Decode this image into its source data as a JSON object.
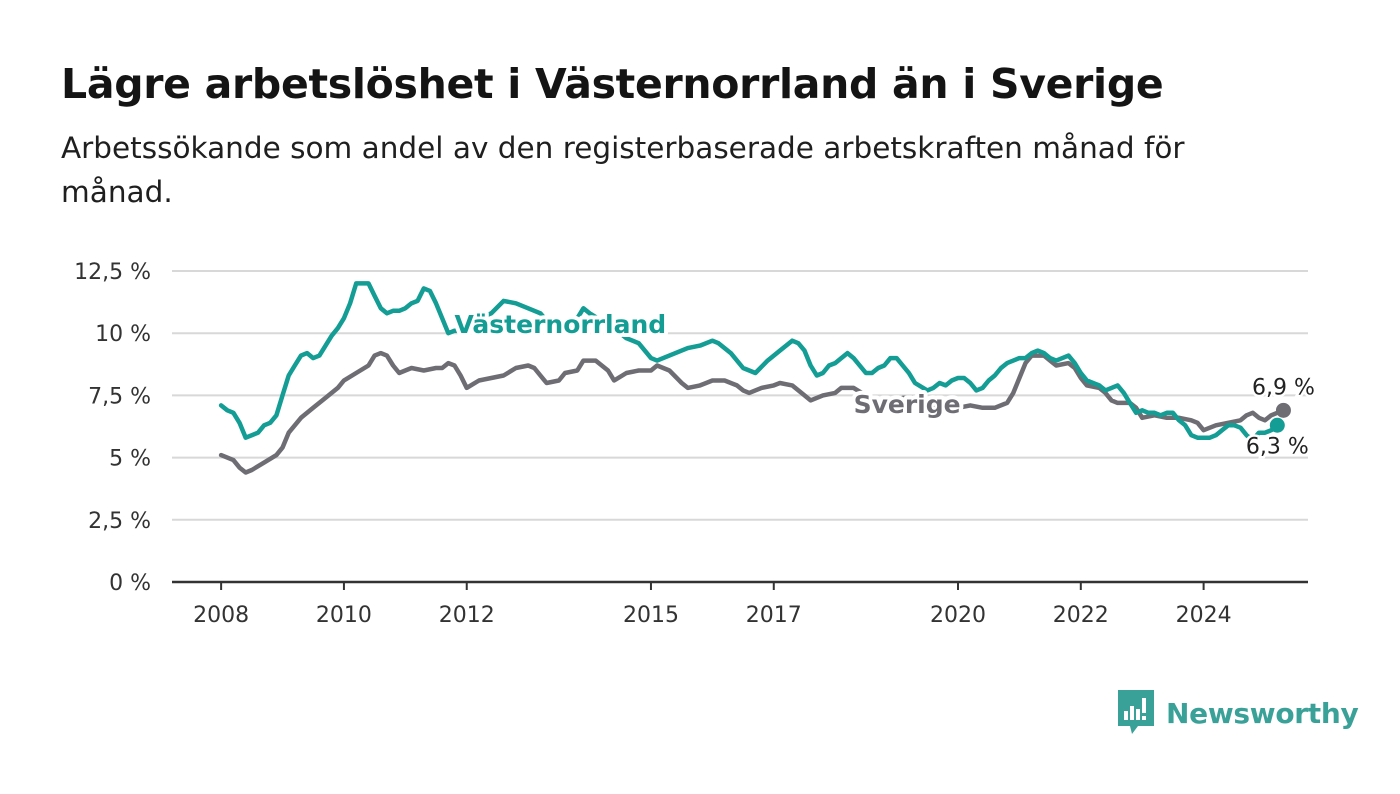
{
  "header": {
    "title": "Lägre arbetslöshet i Västernorrland än i Sverige",
    "subtitle": "Arbetssökande som andel av den registerbaserade arbetskraften månad för månad."
  },
  "brand": {
    "name": "Newsworthy",
    "icon": "newsworthy-logo-icon",
    "color": "#3aa198"
  },
  "chart_data": {
    "type": "line",
    "title": "Lägre arbetslöshet i Västernorrland än i Sverige",
    "subtitle": "Arbetssökande som andel av den registerbaserade arbetskraften månad för månad.",
    "xlabel": "",
    "ylabel": "",
    "xlim": [
      2007.2,
      2025.7
    ],
    "ylim": [
      0,
      12.5
    ],
    "y_ticks": [
      0,
      2.5,
      5,
      7.5,
      10,
      12.5
    ],
    "y_tick_labels": [
      "0 %",
      "2,5 %",
      "5 %",
      "7,5 %",
      "10 %",
      "12,5 %"
    ],
    "x_ticks": [
      2008,
      2010,
      2012,
      2015,
      2017,
      2020,
      2022,
      2024
    ],
    "x_tick_labels": [
      "2008",
      "2010",
      "2012",
      "2015",
      "2017",
      "2020",
      "2022",
      "2024"
    ],
    "grid": "horizontal",
    "legend": "inline labels",
    "series": [
      {
        "name": "Västernorrland",
        "color": "#139d94",
        "end_label": "6,3 %",
        "points": [
          [
            2008.0,
            7.1
          ],
          [
            2008.1,
            6.9
          ],
          [
            2008.2,
            6.8
          ],
          [
            2008.3,
            6.4
          ],
          [
            2008.4,
            5.8
          ],
          [
            2008.6,
            6.0
          ],
          [
            2008.7,
            6.3
          ],
          [
            2008.8,
            6.4
          ],
          [
            2008.9,
            6.7
          ],
          [
            2009.0,
            7.5
          ],
          [
            2009.1,
            8.3
          ],
          [
            2009.2,
            8.7
          ],
          [
            2009.3,
            9.1
          ],
          [
            2009.4,
            9.2
          ],
          [
            2009.5,
            9.0
          ],
          [
            2009.6,
            9.1
          ],
          [
            2009.8,
            9.9
          ],
          [
            2009.9,
            10.2
          ],
          [
            2010.0,
            10.6
          ],
          [
            2010.1,
            11.2
          ],
          [
            2010.2,
            12.0
          ],
          [
            2010.4,
            12.0
          ],
          [
            2010.5,
            11.5
          ],
          [
            2010.6,
            11.0
          ],
          [
            2010.7,
            10.8
          ],
          [
            2010.8,
            10.9
          ],
          [
            2010.9,
            10.9
          ],
          [
            2011.0,
            11.0
          ],
          [
            2011.1,
            11.2
          ],
          [
            2011.2,
            11.3
          ],
          [
            2011.3,
            11.8
          ],
          [
            2011.4,
            11.7
          ],
          [
            2011.5,
            11.2
          ],
          [
            2011.6,
            10.6
          ],
          [
            2011.7,
            10.0
          ],
          [
            2011.8,
            10.1
          ],
          [
            2011.9,
            10.1
          ],
          [
            2012.0,
            10.4
          ],
          [
            2012.2,
            10.6
          ],
          [
            2012.4,
            10.8
          ],
          [
            2012.6,
            11.3
          ],
          [
            2012.8,
            11.2
          ],
          [
            2013.0,
            11.0
          ],
          [
            2013.2,
            10.8
          ],
          [
            2013.4,
            10.2
          ],
          [
            2013.6,
            10.1
          ],
          [
            2013.8,
            10.6
          ],
          [
            2013.9,
            11.0
          ],
          [
            2014.0,
            10.8
          ],
          [
            2014.2,
            10.5
          ],
          [
            2014.4,
            10.2
          ],
          [
            2014.6,
            9.8
          ],
          [
            2014.8,
            9.6
          ],
          [
            2015.0,
            9.0
          ],
          [
            2015.1,
            8.9
          ],
          [
            2015.2,
            9.0
          ],
          [
            2015.4,
            9.2
          ],
          [
            2015.6,
            9.4
          ],
          [
            2015.8,
            9.5
          ],
          [
            2016.0,
            9.7
          ],
          [
            2016.1,
            9.6
          ],
          [
            2016.3,
            9.2
          ],
          [
            2016.5,
            8.6
          ],
          [
            2016.7,
            8.4
          ],
          [
            2016.9,
            8.9
          ],
          [
            2017.1,
            9.3
          ],
          [
            2017.3,
            9.7
          ],
          [
            2017.4,
            9.6
          ],
          [
            2017.5,
            9.3
          ],
          [
            2017.6,
            8.7
          ],
          [
            2017.7,
            8.3
          ],
          [
            2017.8,
            8.4
          ],
          [
            2017.9,
            8.7
          ],
          [
            2018.0,
            8.8
          ],
          [
            2018.1,
            9.0
          ],
          [
            2018.2,
            9.2
          ],
          [
            2018.3,
            9.0
          ],
          [
            2018.4,
            8.7
          ],
          [
            2018.5,
            8.4
          ],
          [
            2018.6,
            8.4
          ],
          [
            2018.7,
            8.6
          ],
          [
            2018.8,
            8.7
          ],
          [
            2018.9,
            9.0
          ],
          [
            2019.0,
            9.0
          ],
          [
            2019.1,
            8.7
          ],
          [
            2019.2,
            8.4
          ],
          [
            2019.3,
            8.0
          ],
          [
            2019.5,
            7.7
          ],
          [
            2019.6,
            7.8
          ],
          [
            2019.7,
            8.0
          ],
          [
            2019.8,
            7.9
          ],
          [
            2019.9,
            8.1
          ],
          [
            2020.0,
            8.2
          ],
          [
            2020.1,
            8.2
          ],
          [
            2020.2,
            8.0
          ],
          [
            2020.3,
            7.7
          ],
          [
            2020.4,
            7.8
          ],
          [
            2020.5,
            8.1
          ],
          [
            2020.6,
            8.3
          ],
          [
            2020.7,
            8.6
          ],
          [
            2020.8,
            8.8
          ],
          [
            2020.9,
            8.9
          ],
          [
            2021.0,
            9.0
          ],
          [
            2021.1,
            9.0
          ],
          [
            2021.2,
            9.2
          ],
          [
            2021.3,
            9.3
          ],
          [
            2021.4,
            9.2
          ],
          [
            2021.5,
            9.0
          ],
          [
            2021.6,
            8.9
          ],
          [
            2021.7,
            9.0
          ],
          [
            2021.8,
            9.1
          ],
          [
            2021.9,
            8.8
          ],
          [
            2022.0,
            8.4
          ],
          [
            2022.1,
            8.1
          ],
          [
            2022.2,
            8.0
          ],
          [
            2022.3,
            7.9
          ],
          [
            2022.4,
            7.7
          ],
          [
            2022.5,
            7.8
          ],
          [
            2022.6,
            7.9
          ],
          [
            2022.7,
            7.6
          ],
          [
            2022.8,
            7.2
          ],
          [
            2022.9,
            6.8
          ],
          [
            2023.0,
            6.9
          ],
          [
            2023.1,
            6.8
          ],
          [
            2023.2,
            6.8
          ],
          [
            2023.3,
            6.7
          ],
          [
            2023.4,
            6.8
          ],
          [
            2023.5,
            6.8
          ],
          [
            2023.6,
            6.5
          ],
          [
            2023.7,
            6.3
          ],
          [
            2023.8,
            5.9
          ],
          [
            2023.9,
            5.8
          ],
          [
            2024.0,
            5.8
          ],
          [
            2024.1,
            5.8
          ],
          [
            2024.2,
            5.9
          ],
          [
            2024.3,
            6.1
          ],
          [
            2024.4,
            6.3
          ],
          [
            2024.5,
            6.3
          ],
          [
            2024.6,
            6.2
          ],
          [
            2024.7,
            5.9
          ],
          [
            2024.8,
            5.7
          ],
          [
            2024.9,
            6.0
          ],
          [
            2025.0,
            6.0
          ],
          [
            2025.1,
            6.1
          ],
          [
            2025.2,
            6.3
          ]
        ]
      },
      {
        "name": "Sverige",
        "color": "#6f6d74",
        "end_label": "6,9 %",
        "points": [
          [
            2008.0,
            5.1
          ],
          [
            2008.2,
            4.9
          ],
          [
            2008.3,
            4.6
          ],
          [
            2008.4,
            4.4
          ],
          [
            2008.5,
            4.5
          ],
          [
            2008.7,
            4.8
          ],
          [
            2008.9,
            5.1
          ],
          [
            2009.0,
            5.4
          ],
          [
            2009.1,
            6.0
          ],
          [
            2009.3,
            6.6
          ],
          [
            2009.5,
            7.0
          ],
          [
            2009.7,
            7.4
          ],
          [
            2009.9,
            7.8
          ],
          [
            2010.0,
            8.1
          ],
          [
            2010.2,
            8.4
          ],
          [
            2010.4,
            8.7
          ],
          [
            2010.5,
            9.1
          ],
          [
            2010.6,
            9.2
          ],
          [
            2010.7,
            9.1
          ],
          [
            2010.8,
            8.7
          ],
          [
            2010.9,
            8.4
          ],
          [
            2011.0,
            8.5
          ],
          [
            2011.1,
            8.6
          ],
          [
            2011.3,
            8.5
          ],
          [
            2011.5,
            8.6
          ],
          [
            2011.6,
            8.6
          ],
          [
            2011.7,
            8.8
          ],
          [
            2011.8,
            8.7
          ],
          [
            2011.9,
            8.3
          ],
          [
            2012.0,
            7.8
          ],
          [
            2012.2,
            8.1
          ],
          [
            2012.4,
            8.2
          ],
          [
            2012.6,
            8.3
          ],
          [
            2012.8,
            8.6
          ],
          [
            2013.0,
            8.7
          ],
          [
            2013.1,
            8.6
          ],
          [
            2013.2,
            8.3
          ],
          [
            2013.3,
            8.0
          ],
          [
            2013.5,
            8.1
          ],
          [
            2013.6,
            8.4
          ],
          [
            2013.8,
            8.5
          ],
          [
            2013.9,
            8.9
          ],
          [
            2014.1,
            8.9
          ],
          [
            2014.3,
            8.5
          ],
          [
            2014.4,
            8.1
          ],
          [
            2014.6,
            8.4
          ],
          [
            2014.8,
            8.5
          ],
          [
            2015.0,
            8.5
          ],
          [
            2015.1,
            8.7
          ],
          [
            2015.3,
            8.5
          ],
          [
            2015.5,
            8.0
          ],
          [
            2015.6,
            7.8
          ],
          [
            2015.8,
            7.9
          ],
          [
            2016.0,
            8.1
          ],
          [
            2016.2,
            8.1
          ],
          [
            2016.4,
            7.9
          ],
          [
            2016.5,
            7.7
          ],
          [
            2016.6,
            7.6
          ],
          [
            2016.8,
            7.8
          ],
          [
            2017.0,
            7.9
          ],
          [
            2017.1,
            8.0
          ],
          [
            2017.3,
            7.9
          ],
          [
            2017.5,
            7.5
          ],
          [
            2017.6,
            7.3
          ],
          [
            2017.8,
            7.5
          ],
          [
            2018.0,
            7.6
          ],
          [
            2018.1,
            7.8
          ],
          [
            2018.3,
            7.8
          ],
          [
            2018.5,
            7.5
          ],
          [
            2018.6,
            7.3
          ],
          [
            2018.8,
            7.3
          ],
          [
            2019.0,
            7.3
          ],
          [
            2019.1,
            7.4
          ],
          [
            2019.3,
            7.4
          ],
          [
            2019.4,
            7.3
          ],
          [
            2019.5,
            7.1
          ],
          [
            2019.6,
            7.0
          ],
          [
            2019.7,
            7.0
          ],
          [
            2020.0,
            7.0
          ],
          [
            2020.2,
            7.1
          ],
          [
            2020.4,
            7.0
          ],
          [
            2020.6,
            7.0
          ],
          [
            2020.8,
            7.2
          ],
          [
            2020.9,
            7.6
          ],
          [
            2021.0,
            8.2
          ],
          [
            2021.1,
            8.8
          ],
          [
            2021.2,
            9.1
          ],
          [
            2021.4,
            9.1
          ],
          [
            2021.5,
            8.9
          ],
          [
            2021.6,
            8.7
          ],
          [
            2021.8,
            8.8
          ],
          [
            2021.9,
            8.6
          ],
          [
            2022.0,
            8.2
          ],
          [
            2022.1,
            7.9
          ],
          [
            2022.3,
            7.8
          ],
          [
            2022.4,
            7.6
          ],
          [
            2022.5,
            7.3
          ],
          [
            2022.6,
            7.2
          ],
          [
            2022.8,
            7.2
          ],
          [
            2022.9,
            7.0
          ],
          [
            2023.0,
            6.6
          ],
          [
            2023.2,
            6.7
          ],
          [
            2023.4,
            6.6
          ],
          [
            2023.6,
            6.6
          ],
          [
            2023.8,
            6.5
          ],
          [
            2023.9,
            6.4
          ],
          [
            2024.0,
            6.1
          ],
          [
            2024.2,
            6.3
          ],
          [
            2024.4,
            6.4
          ],
          [
            2024.6,
            6.5
          ],
          [
            2024.7,
            6.7
          ],
          [
            2024.8,
            6.8
          ],
          [
            2024.9,
            6.6
          ],
          [
            2025.0,
            6.5
          ],
          [
            2025.1,
            6.7
          ],
          [
            2025.2,
            6.8
          ],
          [
            2025.3,
            6.9
          ]
        ]
      }
    ]
  }
}
